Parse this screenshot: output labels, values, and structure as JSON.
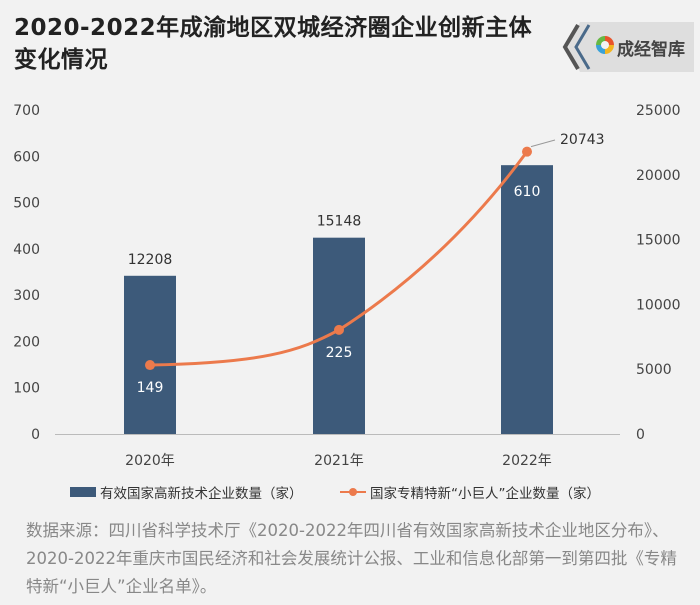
{
  "title": "2020-2022年成渝地区双城经济圈企业创新主体变化情况",
  "logo_text": "成经智库",
  "source": "数据来源：四川省科学技术厅《2020-2022年四川省有效国家高新技术企业地区分布》、2020-2022年重庆市国民经济和社会发展统计公报、工业和信息化部第一到第四批《专精特新“小巨人”企业名单》。",
  "colors": {
    "bar": "#3d5a7a",
    "line": "#ec7a4c",
    "background": "#f2f2f2"
  },
  "chart_data": {
    "type": "bar",
    "categories": [
      "2020年",
      "2021年",
      "2022年"
    ],
    "series": [
      {
        "name": "有效国家高新技术企业数量（家）",
        "type": "bar",
        "axis": "right",
        "values": [
          12208,
          15148,
          20743
        ],
        "labels": [
          "12208",
          "15148",
          "20743"
        ]
      },
      {
        "name": "国家专精特新“小巨人”企业数量（家）",
        "type": "line",
        "axis": "left",
        "values": [
          149,
          225,
          610
        ],
        "labels": [
          "149",
          "225",
          "610"
        ]
      }
    ],
    "y_left": {
      "ticks": [
        "0",
        "100",
        "200",
        "300",
        "400",
        "500",
        "600",
        "700"
      ],
      "lim": [
        0,
        700
      ]
    },
    "y_right": {
      "ticks": [
        "0",
        "5000",
        "10000",
        "15000",
        "20000",
        "25000"
      ],
      "lim": [
        0,
        25000
      ]
    },
    "legend_position": "bottom",
    "grid": false
  }
}
